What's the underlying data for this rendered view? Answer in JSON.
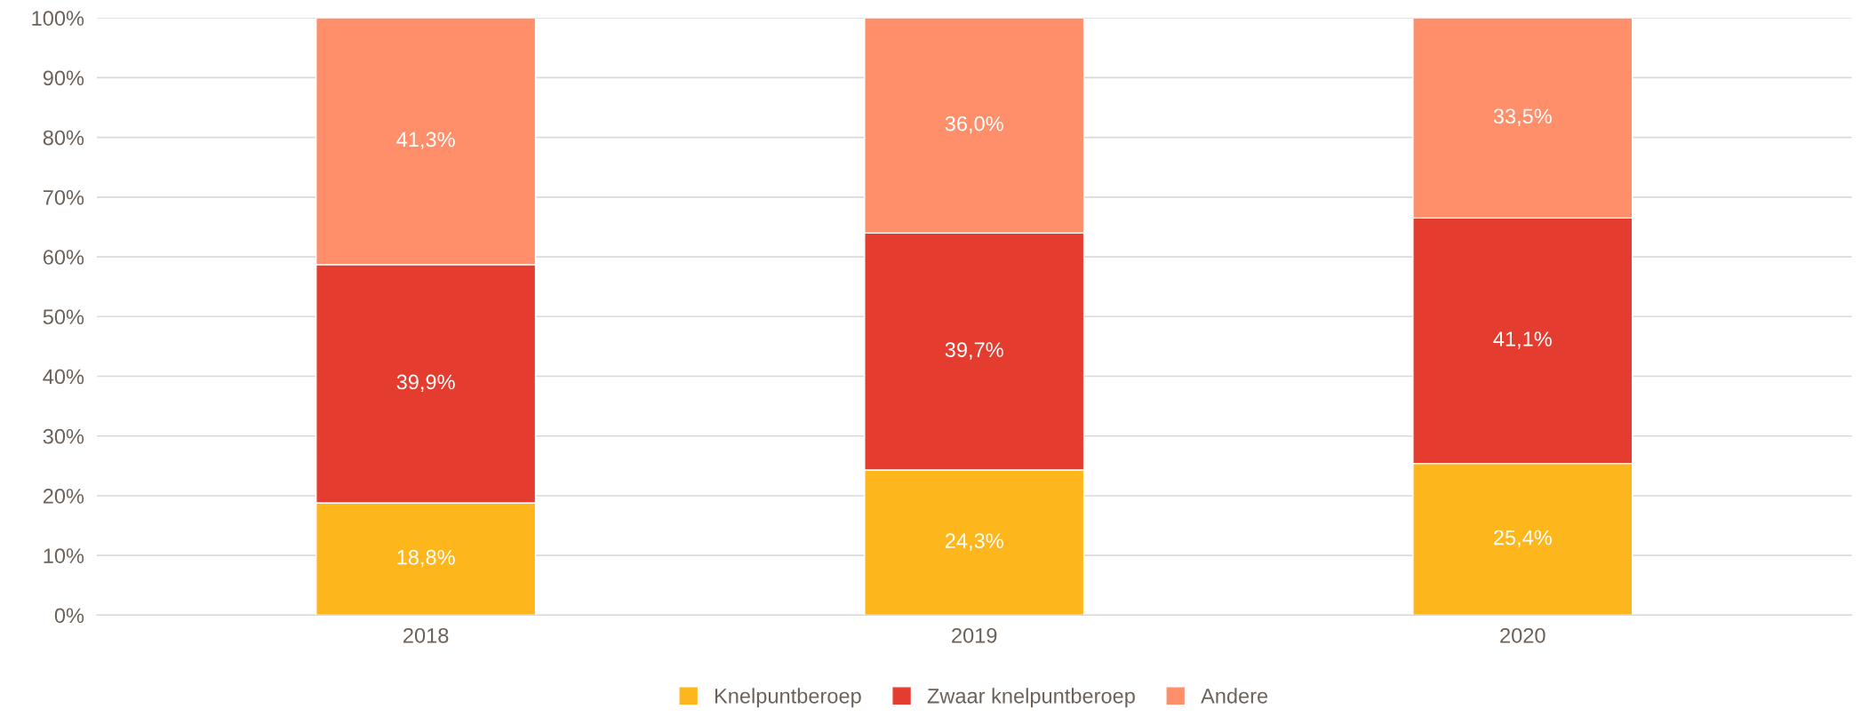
{
  "chart_data": {
    "type": "bar",
    "stacked": true,
    "categories": [
      "2018",
      "2019",
      "2020"
    ],
    "series": [
      {
        "name": "Knelpuntberoep",
        "color": "#fdb71c",
        "values": [
          18.8,
          24.3,
          25.4
        ],
        "value_labels": [
          "18,8%",
          "24,3%",
          "25,4%"
        ]
      },
      {
        "name": "Zwaar knelpuntberoep",
        "color": "#e43d30",
        "values": [
          39.9,
          39.7,
          41.1
        ],
        "value_labels": [
          "39,9%",
          "39,7%",
          "41,1%"
        ]
      },
      {
        "name": "Andere",
        "color": "#ff8f6b",
        "values": [
          41.3,
          36.0,
          33.5
        ],
        "value_labels": [
          "41,3%",
          "36,0%",
          "33,5%"
        ]
      }
    ],
    "ylim": [
      0,
      100
    ],
    "yticks": [
      {
        "value": 0,
        "label": "0%"
      },
      {
        "value": 10,
        "label": "10%"
      },
      {
        "value": 20,
        "label": "20%"
      },
      {
        "value": 30,
        "label": "30%"
      },
      {
        "value": 40,
        "label": "40%"
      },
      {
        "value": 50,
        "label": "50%"
      },
      {
        "value": 60,
        "label": "60%"
      },
      {
        "value": 70,
        "label": "70%"
      },
      {
        "value": 80,
        "label": "80%"
      },
      {
        "value": 90,
        "label": "90%"
      },
      {
        "value": 100,
        "label": "100%"
      }
    ],
    "grid": "y",
    "legend": "bottom"
  }
}
